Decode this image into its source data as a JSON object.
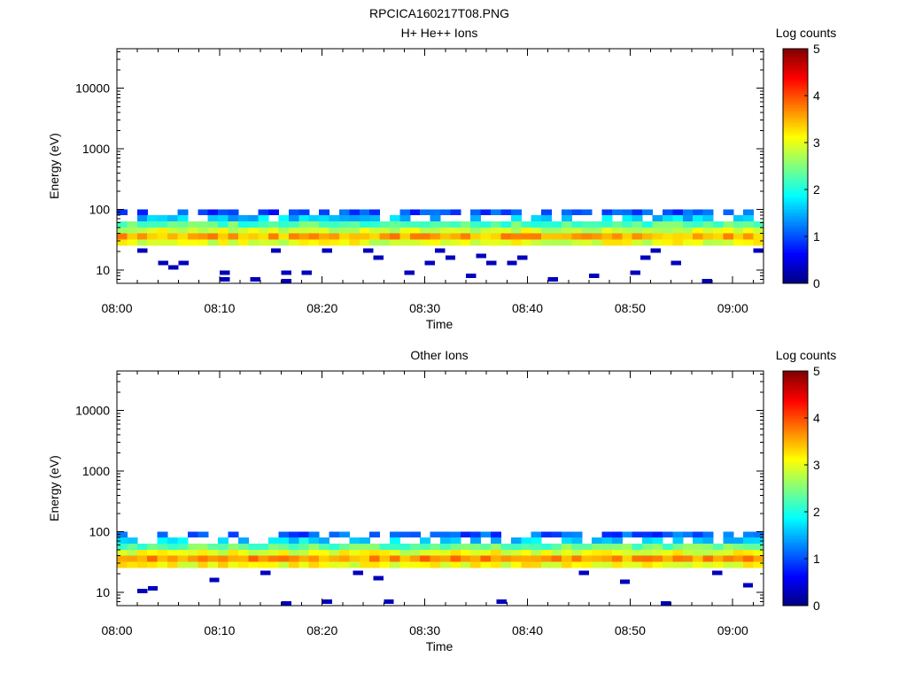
{
  "figure_title": "RPCICA160217T08.PNG",
  "chart_data": [
    {
      "type": "heatmap",
      "title": "H+ He++ Ions",
      "xlabel": "Time",
      "ylabel": "Energy (eV)",
      "x_ticks": [
        "08:00",
        "08:10",
        "08:20",
        "08:30",
        "08:40",
        "08:50",
        "09:00"
      ],
      "x_range": [
        "08:00",
        "09:03"
      ],
      "y_scale": "log",
      "y_ticks": [
        "10",
        "100",
        "1000",
        "10000"
      ],
      "y_range": [
        6,
        45000
      ],
      "colorbar": {
        "label": "Log counts",
        "min": 0,
        "max": 5,
        "ticks": [
          "0",
          "1",
          "2",
          "3",
          "4",
          "5"
        ],
        "colormap": "jet"
      },
      "energy_bins_eV": [
        6.3,
        8,
        10,
        13,
        16,
        20,
        25,
        32,
        40,
        50,
        63,
        80,
        100
      ],
      "time_steps": 64,
      "band_peak_log_counts": 3.6,
      "band_peak_energy_eV": 35,
      "sparse_points": [
        {
          "time": "08:02",
          "energy": 21,
          "value": 0.3
        },
        {
          "time": "08:04",
          "energy": 13,
          "value": 0.3
        },
        {
          "time": "08:05",
          "energy": 11,
          "value": 0.3
        },
        {
          "time": "08:06",
          "energy": 13,
          "value": 0.3
        },
        {
          "time": "08:10",
          "energy": 7,
          "value": 0.3
        },
        {
          "time": "08:10",
          "energy": 9,
          "value": 0.3
        },
        {
          "time": "08:13",
          "energy": 7,
          "value": 0.3
        },
        {
          "time": "08:15",
          "energy": 21,
          "value": 0.3
        },
        {
          "time": "08:16",
          "energy": 9,
          "value": 0.3
        },
        {
          "time": "08:16",
          "energy": 6.5,
          "value": 0.3
        },
        {
          "time": "08:18",
          "energy": 9,
          "value": 0.3
        },
        {
          "time": "08:20",
          "energy": 21,
          "value": 0.3
        },
        {
          "time": "08:24",
          "energy": 21,
          "value": 0.3
        },
        {
          "time": "08:25",
          "energy": 16,
          "value": 0.3
        },
        {
          "time": "08:28",
          "energy": 9,
          "value": 0.3
        },
        {
          "time": "08:30",
          "energy": 13,
          "value": 0.3
        },
        {
          "time": "08:31",
          "energy": 21,
          "value": 0.3
        },
        {
          "time": "08:32",
          "energy": 16,
          "value": 0.3
        },
        {
          "time": "08:34",
          "energy": 8,
          "value": 0.3
        },
        {
          "time": "08:35",
          "energy": 17,
          "value": 0.3
        },
        {
          "time": "08:36",
          "energy": 13,
          "value": 0.3
        },
        {
          "time": "08:38",
          "energy": 13,
          "value": 0.3
        },
        {
          "time": "08:39",
          "energy": 16,
          "value": 0.3
        },
        {
          "time": "08:42",
          "energy": 7,
          "value": 0.3
        },
        {
          "time": "08:46",
          "energy": 8,
          "value": 0.3
        },
        {
          "time": "08:50",
          "energy": 9,
          "value": 0.3
        },
        {
          "time": "08:51",
          "energy": 16,
          "value": 0.3
        },
        {
          "time": "08:52",
          "energy": 21,
          "value": 0.3
        },
        {
          "time": "08:54",
          "energy": 13,
          "value": 0.3
        },
        {
          "time": "08:57",
          "energy": 6.5,
          "value": 0.3
        },
        {
          "time": "09:02",
          "energy": 21,
          "value": 0.3
        }
      ]
    },
    {
      "type": "heatmap",
      "title": "Other Ions",
      "xlabel": "Time",
      "ylabel": "Energy (eV)",
      "x_ticks": [
        "08:00",
        "08:10",
        "08:20",
        "08:30",
        "08:40",
        "08:50",
        "09:00"
      ],
      "x_range": [
        "08:00",
        "09:03"
      ],
      "y_scale": "log",
      "y_ticks": [
        "10",
        "100",
        "1000",
        "10000"
      ],
      "y_range": [
        6,
        45000
      ],
      "colorbar": {
        "label": "Log counts",
        "min": 0,
        "max": 5,
        "ticks": [
          "0",
          "1",
          "2",
          "3",
          "4",
          "5"
        ],
        "colormap": "jet"
      },
      "energy_bins_eV": [
        6.3,
        8,
        10,
        13,
        16,
        20,
        25,
        32,
        40,
        50,
        63,
        80,
        100
      ],
      "time_steps": 64,
      "band_peak_log_counts": 3.7,
      "band_peak_energy_eV": 35,
      "sparse_points": [
        {
          "time": "08:02",
          "energy": 10.5,
          "value": 0.3
        },
        {
          "time": "08:03",
          "energy": 11.5,
          "value": 0.3
        },
        {
          "time": "08:09",
          "energy": 16,
          "value": 0.3
        },
        {
          "time": "08:14",
          "energy": 21,
          "value": 0.3
        },
        {
          "time": "08:16",
          "energy": 6.5,
          "value": 0.3
        },
        {
          "time": "08:20",
          "energy": 7,
          "value": 0.3
        },
        {
          "time": "08:23",
          "energy": 21,
          "value": 0.3
        },
        {
          "time": "08:25",
          "energy": 17,
          "value": 0.3
        },
        {
          "time": "08:26",
          "energy": 7,
          "value": 0.3
        },
        {
          "time": "08:37",
          "energy": 7,
          "value": 0.3
        },
        {
          "time": "08:45",
          "energy": 21,
          "value": 0.3
        },
        {
          "time": "08:49",
          "energy": 15,
          "value": 0.3
        },
        {
          "time": "08:53",
          "energy": 6.5,
          "value": 0.3
        },
        {
          "time": "08:58",
          "energy": 21,
          "value": 0.3
        },
        {
          "time": "09:01",
          "energy": 13,
          "value": 0.3
        }
      ]
    }
  ]
}
